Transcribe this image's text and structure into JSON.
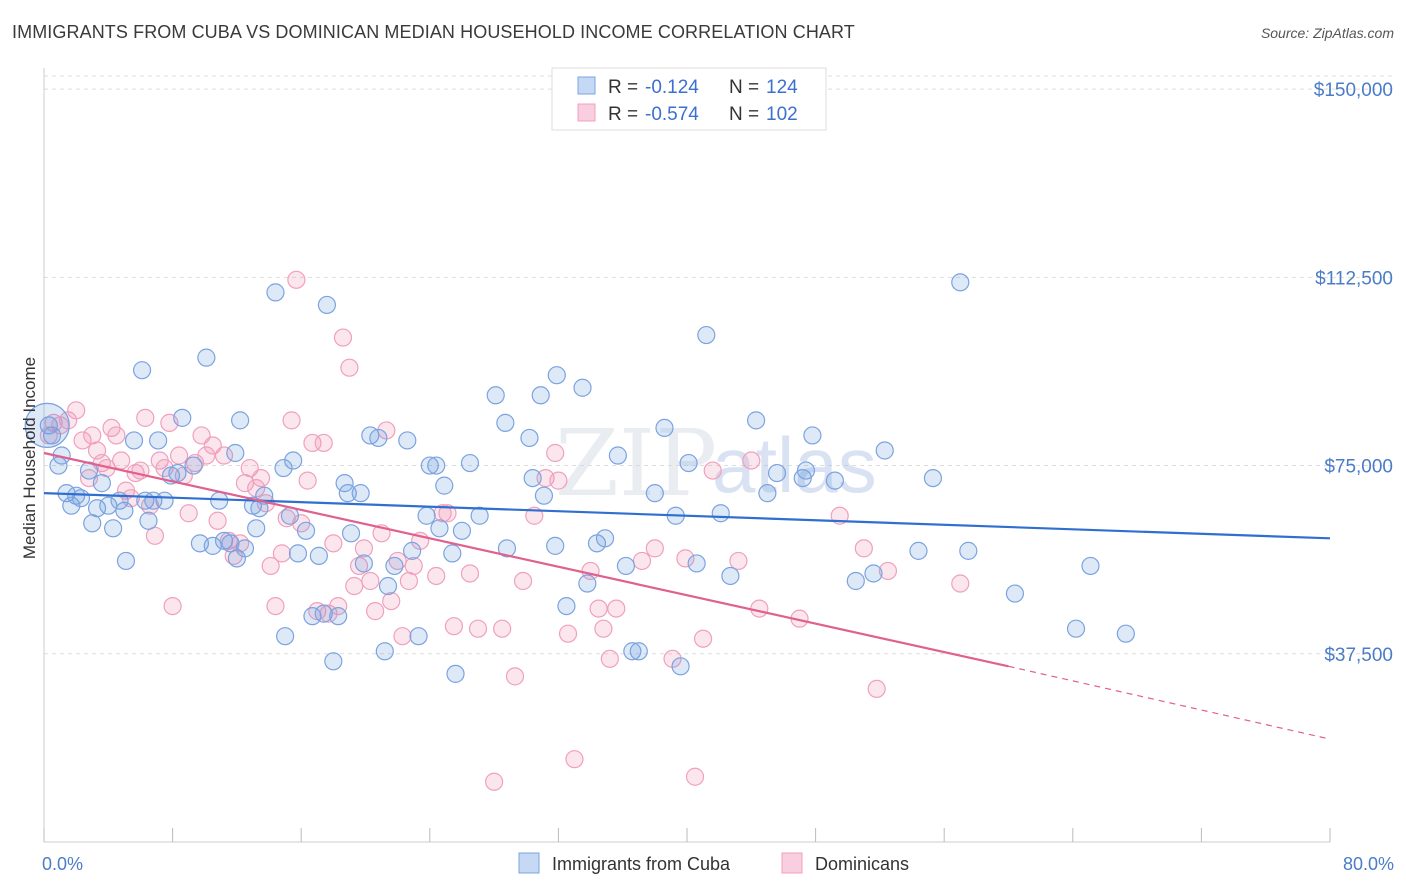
{
  "title": "IMMIGRANTS FROM CUBA VS DOMINICAN MEDIAN HOUSEHOLD INCOME CORRELATION CHART",
  "source": "Source: ZipAtlas.com",
  "watermark": {
    "zip": "ZIP",
    "atlas": "atlas"
  },
  "colors": {
    "cuba": "#6a9be0",
    "dominican": "#f08cb0",
    "cuba_line": "#2f6fd0",
    "dominican_line": "#e0608e",
    "axis_text": "#4a7cc7",
    "grid": "#dddddd"
  },
  "legend": {
    "rows": [
      {
        "r_label": "R =",
        "r_value": "-0.124",
        "n_label": "N =",
        "n_value": "124"
      },
      {
        "r_label": "R =",
        "r_value": "-0.574",
        "n_label": "N =",
        "n_value": "102"
      }
    ]
  },
  "chart_data": {
    "type": "scatter",
    "title": "IMMIGRANTS FROM CUBA VS DOMINICAN MEDIAN HOUSEHOLD INCOME CORRELATION CHART",
    "xlabel": "",
    "ylabel": "Median Household Income",
    "xlim": [
      0,
      80
    ],
    "ylim": [
      0,
      155000
    ],
    "x_tick_labels": [
      "0.0%",
      "80.0%"
    ],
    "y_ticks": [
      37500,
      75000,
      112500,
      150000
    ],
    "y_tick_labels": [
      "$37,500",
      "$75,000",
      "$112,500",
      "$150,000"
    ],
    "grid": true,
    "legend_position": "top-center",
    "series": [
      {
        "name": "Immigrants from Cuba",
        "R": -0.124,
        "N": 124,
        "trend": {
          "x": [
            0,
            80
          ],
          "y": [
            69500,
            60500
          ]
        },
        "points": [
          [
            0.3,
            83000
          ],
          [
            0.5,
            81000
          ],
          [
            0.9,
            75000
          ],
          [
            1.1,
            77000
          ],
          [
            1.4,
            69500
          ],
          [
            1.7,
            67000
          ],
          [
            2.0,
            69000
          ],
          [
            2.3,
            68500
          ],
          [
            2.8,
            74000
          ],
          [
            3.0,
            63500
          ],
          [
            3.3,
            66500
          ],
          [
            3.6,
            71500
          ],
          [
            4.0,
            67000
          ],
          [
            4.3,
            62500
          ],
          [
            4.7,
            68000
          ],
          [
            5.0,
            66000
          ],
          [
            5.1,
            56000
          ],
          [
            5.6,
            80000
          ],
          [
            6.1,
            94000
          ],
          [
            6.3,
            68000
          ],
          [
            6.5,
            64000
          ],
          [
            6.8,
            68000
          ],
          [
            7.1,
            80000
          ],
          [
            7.5,
            68000
          ],
          [
            7.9,
            73000
          ],
          [
            8.3,
            73500
          ],
          [
            8.6,
            84500
          ],
          [
            9.3,
            75000
          ],
          [
            9.7,
            59500
          ],
          [
            10.1,
            96500
          ],
          [
            10.5,
            59000
          ],
          [
            10.9,
            68000
          ],
          [
            11.2,
            60000
          ],
          [
            11.6,
            59500
          ],
          [
            11.9,
            77500
          ],
          [
            12.0,
            56500
          ],
          [
            12.2,
            84000
          ],
          [
            12.5,
            58500
          ],
          [
            13.0,
            67000
          ],
          [
            13.2,
            62500
          ],
          [
            13.4,
            66500
          ],
          [
            13.7,
            69000
          ],
          [
            14.4,
            109500
          ],
          [
            14.9,
            74500
          ],
          [
            15.0,
            41000
          ],
          [
            15.3,
            65000
          ],
          [
            15.5,
            76000
          ],
          [
            15.8,
            57500
          ],
          [
            16.3,
            62000
          ],
          [
            16.7,
            45000
          ],
          [
            17.1,
            57000
          ],
          [
            17.4,
            45500
          ],
          [
            17.6,
            107000
          ],
          [
            18.0,
            36000
          ],
          [
            18.3,
            45000
          ],
          [
            18.7,
            71500
          ],
          [
            18.9,
            69500
          ],
          [
            19.1,
            61500
          ],
          [
            19.7,
            69500
          ],
          [
            19.9,
            55500
          ],
          [
            20.3,
            81000
          ],
          [
            20.8,
            80500
          ],
          [
            21.2,
            38000
          ],
          [
            21.4,
            51000
          ],
          [
            21.8,
            55000
          ],
          [
            22.6,
            80000
          ],
          [
            22.9,
            58000
          ],
          [
            23.3,
            41000
          ],
          [
            23.8,
            65000
          ],
          [
            24.0,
            75000
          ],
          [
            24.4,
            75000
          ],
          [
            24.6,
            62500
          ],
          [
            24.9,
            71000
          ],
          [
            25.4,
            57500
          ],
          [
            25.6,
            33500
          ],
          [
            26.0,
            62000
          ],
          [
            26.5,
            75500
          ],
          [
            27.1,
            65000
          ],
          [
            28.1,
            89000
          ],
          [
            28.7,
            83500
          ],
          [
            28.8,
            58500
          ],
          [
            30.2,
            80500
          ],
          [
            30.4,
            72500
          ],
          [
            30.9,
            89000
          ],
          [
            31.1,
            69000
          ],
          [
            31.8,
            59000
          ],
          [
            31.9,
            93000
          ],
          [
            32.5,
            47000
          ],
          [
            33.5,
            90500
          ],
          [
            33.8,
            51500
          ],
          [
            34.4,
            59500
          ],
          [
            34.9,
            60500
          ],
          [
            35.7,
            77000
          ],
          [
            36.2,
            55000
          ],
          [
            36.6,
            38000
          ],
          [
            37.0,
            38000
          ],
          [
            38.0,
            69500
          ],
          [
            38.6,
            82500
          ],
          [
            39.3,
            65000
          ],
          [
            39.6,
            35000
          ],
          [
            40.1,
            75500
          ],
          [
            40.6,
            55500
          ],
          [
            41.2,
            101000
          ],
          [
            42.1,
            65500
          ],
          [
            42.7,
            53000
          ],
          [
            44.3,
            84000
          ],
          [
            45.0,
            69500
          ],
          [
            45.6,
            73500
          ],
          [
            47.2,
            72500
          ],
          [
            47.4,
            74000
          ],
          [
            47.8,
            81000
          ],
          [
            49.2,
            72000
          ],
          [
            50.5,
            52000
          ],
          [
            51.6,
            53500
          ],
          [
            52.3,
            78000
          ],
          [
            54.4,
            58000
          ],
          [
            55.3,
            72500
          ],
          [
            57.0,
            111500
          ],
          [
            57.5,
            58000
          ],
          [
            60.4,
            49500
          ],
          [
            64.2,
            42500
          ],
          [
            65.1,
            55000
          ],
          [
            67.3,
            41500
          ]
        ]
      },
      {
        "name": "Dominicans",
        "R": -0.574,
        "N": 102,
        "trend": {
          "x": [
            0,
            60
          ],
          "y": [
            77500,
            35000
          ],
          "dashed_to": {
            "x": 80,
            "y": 20500
          }
        },
        "points": [
          [
            0.3,
            81000
          ],
          [
            0.6,
            83500
          ],
          [
            1.0,
            83000
          ],
          [
            1.5,
            84000
          ],
          [
            2.0,
            86000
          ],
          [
            2.4,
            80000
          ],
          [
            2.8,
            72500
          ],
          [
            3.0,
            81000
          ],
          [
            3.3,
            78000
          ],
          [
            3.6,
            75500
          ],
          [
            3.9,
            74500
          ],
          [
            4.2,
            82500
          ],
          [
            4.5,
            81000
          ],
          [
            4.8,
            76000
          ],
          [
            5.1,
            70000
          ],
          [
            5.4,
            68500
          ],
          [
            5.7,
            73500
          ],
          [
            6.0,
            74000
          ],
          [
            6.3,
            84500
          ],
          [
            6.6,
            67000
          ],
          [
            6.9,
            61000
          ],
          [
            7.2,
            76000
          ],
          [
            7.5,
            74500
          ],
          [
            7.8,
            83500
          ],
          [
            8.0,
            47000
          ],
          [
            8.4,
            77000
          ],
          [
            8.7,
            73000
          ],
          [
            9.0,
            65500
          ],
          [
            9.4,
            75500
          ],
          [
            9.8,
            81000
          ],
          [
            10.1,
            77000
          ],
          [
            10.5,
            79000
          ],
          [
            10.8,
            64000
          ],
          [
            11.2,
            77000
          ],
          [
            11.5,
            60000
          ],
          [
            11.8,
            57000
          ],
          [
            12.2,
            59500
          ],
          [
            12.5,
            71500
          ],
          [
            12.8,
            74500
          ],
          [
            13.2,
            70500
          ],
          [
            13.5,
            72500
          ],
          [
            13.8,
            67500
          ],
          [
            14.1,
            55000
          ],
          [
            14.4,
            47000
          ],
          [
            14.8,
            57500
          ],
          [
            15.1,
            64500
          ],
          [
            15.4,
            84000
          ],
          [
            15.7,
            112000
          ],
          [
            16.0,
            63500
          ],
          [
            16.4,
            72000
          ],
          [
            16.7,
            79500
          ],
          [
            17.0,
            46000
          ],
          [
            17.4,
            79500
          ],
          [
            17.7,
            45500
          ],
          [
            18.0,
            59500
          ],
          [
            18.3,
            47000
          ],
          [
            18.6,
            100500
          ],
          [
            19.0,
            94500
          ],
          [
            19.3,
            51000
          ],
          [
            19.6,
            55000
          ],
          [
            19.9,
            58500
          ],
          [
            20.3,
            52000
          ],
          [
            20.6,
            46000
          ],
          [
            21.0,
            61500
          ],
          [
            21.3,
            82000
          ],
          [
            21.6,
            48000
          ],
          [
            22.0,
            56000
          ],
          [
            22.3,
            41000
          ],
          [
            22.7,
            52000
          ],
          [
            23.0,
            55000
          ],
          [
            23.4,
            60000
          ],
          [
            24.4,
            53000
          ],
          [
            24.8,
            65500
          ],
          [
            25.1,
            65500
          ],
          [
            25.5,
            43000
          ],
          [
            26.5,
            53500
          ],
          [
            27.0,
            42500
          ],
          [
            28.0,
            12000
          ],
          [
            28.5,
            42500
          ],
          [
            29.3,
            33000
          ],
          [
            29.8,
            52000
          ],
          [
            30.5,
            65000
          ],
          [
            31.2,
            72500
          ],
          [
            31.8,
            77500
          ],
          [
            32.0,
            72000
          ],
          [
            32.6,
            41500
          ],
          [
            33.0,
            16500
          ],
          [
            34.0,
            54000
          ],
          [
            34.5,
            46500
          ],
          [
            34.8,
            42500
          ],
          [
            35.2,
            36500
          ],
          [
            35.6,
            46500
          ],
          [
            37.2,
            56000
          ],
          [
            38.0,
            58500
          ],
          [
            39.1,
            36500
          ],
          [
            39.9,
            56500
          ],
          [
            40.5,
            13000
          ],
          [
            41.0,
            40500
          ],
          [
            41.6,
            74000
          ],
          [
            43.2,
            56000
          ],
          [
            44.0,
            76000
          ],
          [
            44.5,
            46500
          ],
          [
            47.0,
            44500
          ],
          [
            49.5,
            65000
          ],
          [
            51.0,
            58500
          ],
          [
            51.8,
            30500
          ],
          [
            52.5,
            54000
          ],
          [
            57.0,
            51500
          ]
        ]
      }
    ]
  },
  "axis": {
    "x_min_label": "0.0%",
    "x_max_label": "80.0%",
    "y_label": "Median Household Income",
    "y_tick_labels": [
      "$37,500",
      "$75,000",
      "$112,500",
      "$150,000"
    ]
  },
  "bottom_legend": [
    {
      "label": "Immigrants from Cuba"
    },
    {
      "label": "Dominicans"
    }
  ]
}
